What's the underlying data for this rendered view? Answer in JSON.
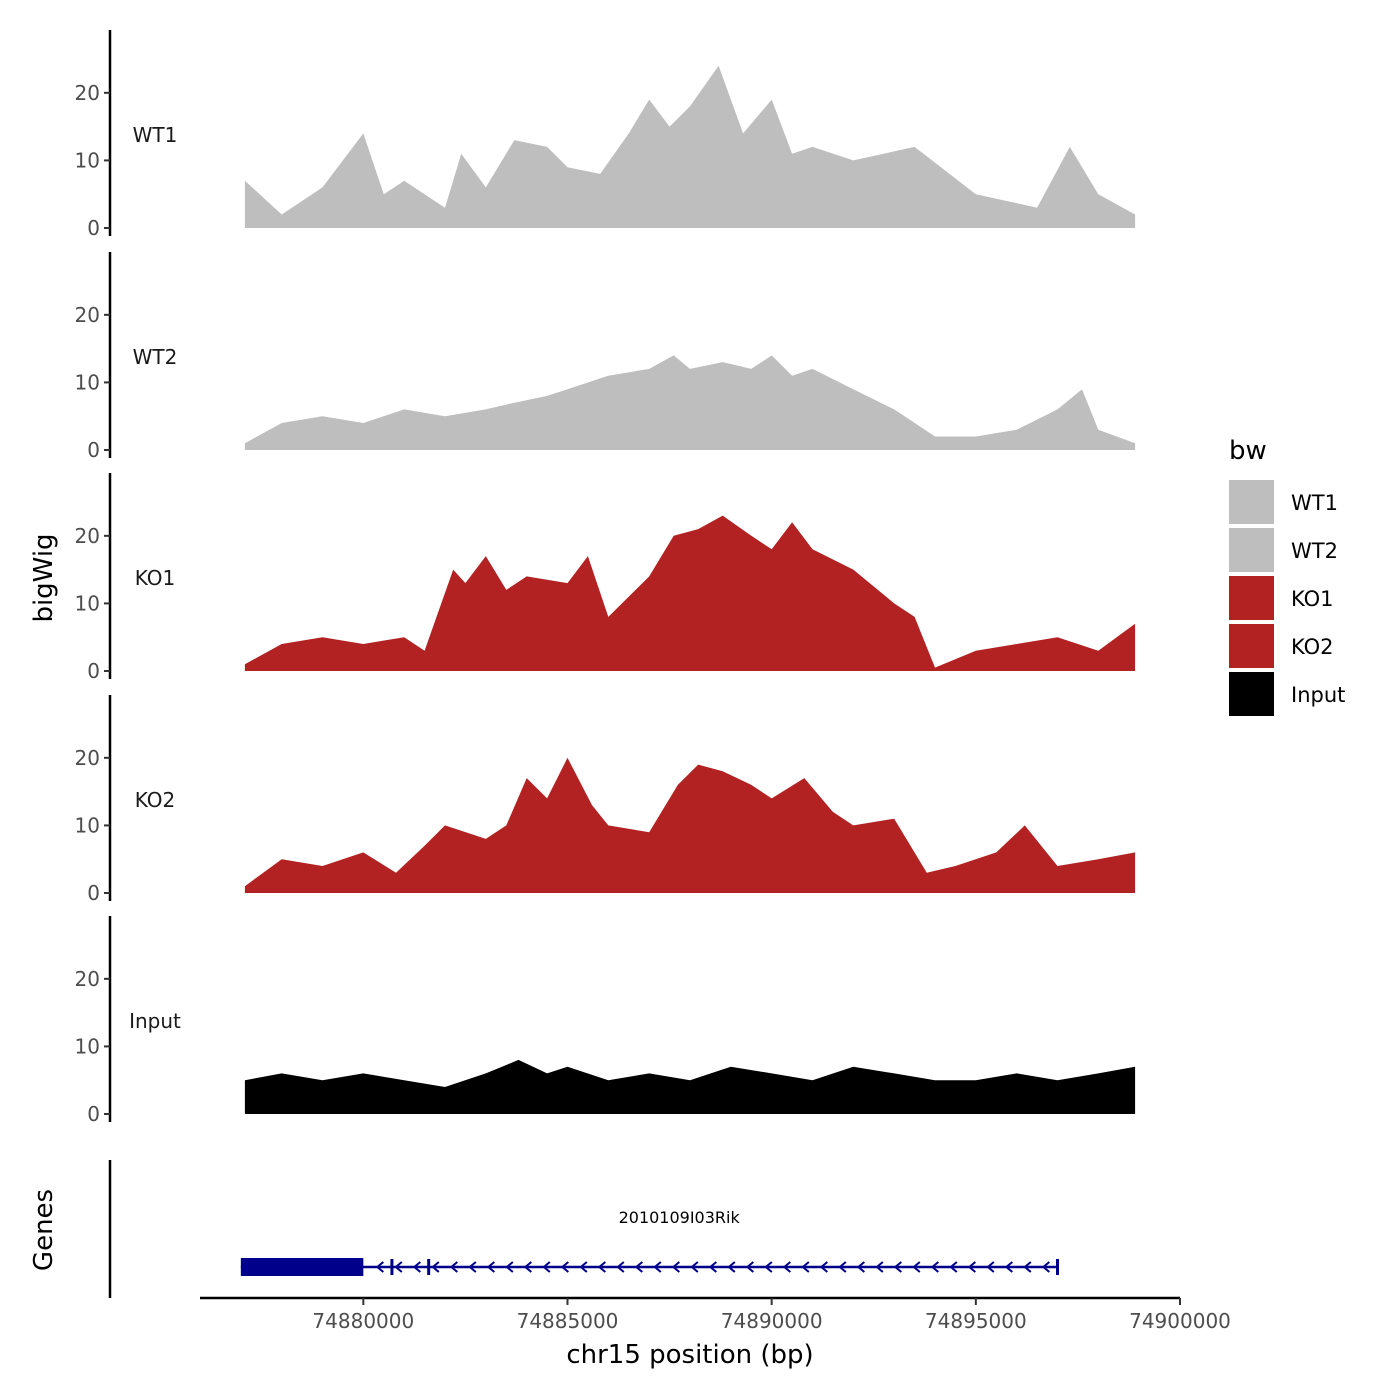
{
  "chart_data": {
    "type": "area",
    "chromosome": "chr15",
    "xlabel": "chr15 position (bp)",
    "ylabel": "bigWig",
    "genes_label": "Genes",
    "xlim": [
      74876000,
      74900000
    ],
    "x_ticks": [
      74880000,
      74885000,
      74890000,
      74895000,
      74900000
    ],
    "x_tick_labels": [
      "74880000",
      "74885000",
      "74890000",
      "74895000",
      "74900000"
    ],
    "ylim": [
      0,
      29
    ],
    "y_ticks": [
      0,
      10,
      20
    ],
    "y_tick_labels": [
      "0",
      "10",
      "20"
    ],
    "legend": {
      "title": "bw",
      "entries": [
        {
          "label": "WT1",
          "color": "#bebebe"
        },
        {
          "label": "WT2",
          "color": "#bebebe"
        },
        {
          "label": "KO1",
          "color": "#b22222"
        },
        {
          "label": "KO2",
          "color": "#b22222"
        },
        {
          "label": "Input",
          "color": "#000000"
        }
      ]
    },
    "tracks": [
      {
        "name": "WT1",
        "color": "#bebebe",
        "x": [
          74877100,
          74878000,
          74879000,
          74880000,
          74880500,
          74881000,
          74882000,
          74882400,
          74883000,
          74883700,
          74884500,
          74885000,
          74885800,
          74886500,
          74887000,
          74887500,
          74888000,
          74888700,
          74889300,
          74890000,
          74890500,
          74891000,
          74892000,
          74893500,
          74895000,
          74896500,
          74897300,
          74898000,
          74898900
        ],
        "values": [
          7,
          2,
          6,
          14,
          5,
          7,
          3,
          11,
          6,
          13,
          12,
          9,
          8,
          14,
          19,
          15,
          18,
          24,
          14,
          19,
          11,
          12,
          10,
          12,
          5,
          3,
          12,
          5,
          2
        ]
      },
      {
        "name": "WT2",
        "color": "#bebebe",
        "x": [
          74877100,
          74878000,
          74879000,
          74880000,
          74881000,
          74882000,
          74883000,
          74883700,
          74884500,
          74885000,
          74886000,
          74887000,
          74887600,
          74888000,
          74888800,
          74889500,
          74890000,
          74890500,
          74891000,
          74892000,
          74893000,
          74894000,
          74895000,
          74896000,
          74897000,
          74897600,
          74898000,
          74898900
        ],
        "values": [
          1,
          4,
          5,
          4,
          6,
          5,
          6,
          7,
          8,
          9,
          11,
          12,
          14,
          12,
          13,
          12,
          14,
          11,
          12,
          9,
          6,
          2,
          2,
          3,
          6,
          9,
          3,
          1
        ]
      },
      {
        "name": "KO1",
        "color": "#b22222",
        "x": [
          74877100,
          74878000,
          74879000,
          74880000,
          74881000,
          74881500,
          74882200,
          74882500,
          74883000,
          74883500,
          74884000,
          74885000,
          74885500,
          74886000,
          74887000,
          74887600,
          74888200,
          74888800,
          74889500,
          74890000,
          74890500,
          74891000,
          74892000,
          74893000,
          74893500,
          74894000,
          74895000,
          74896000,
          74897000,
          74898000,
          74898900
        ],
        "values": [
          1,
          4,
          5,
          4,
          5,
          3,
          15,
          13,
          17,
          12,
          14,
          13,
          17,
          8,
          14,
          20,
          21,
          23,
          20,
          18,
          22,
          18,
          15,
          10,
          8,
          0.5,
          3,
          4,
          5,
          3,
          7
        ]
      },
      {
        "name": "KO2",
        "color": "#b22222",
        "x": [
          74877100,
          74878000,
          74879000,
          74880000,
          74880800,
          74881500,
          74882000,
          74883000,
          74883500,
          74884000,
          74884500,
          74885000,
          74885600,
          74886000,
          74887000,
          74887700,
          74888200,
          74888800,
          74889500,
          74890000,
          74890800,
          74891500,
          74892000,
          74893000,
          74893800,
          74894500,
          74895500,
          74896200,
          74897000,
          74898000,
          74898900
        ],
        "values": [
          1,
          5,
          4,
          6,
          3,
          7,
          10,
          8,
          10,
          17,
          14,
          20,
          13,
          10,
          9,
          16,
          19,
          18,
          16,
          14,
          17,
          12,
          10,
          11,
          3,
          4,
          6,
          10,
          4,
          5,
          6
        ]
      },
      {
        "name": "Input",
        "color": "#000000",
        "x": [
          74877100,
          74878000,
          74879000,
          74880000,
          74881000,
          74882000,
          74883000,
          74883800,
          74884500,
          74885000,
          74886000,
          74887000,
          74888000,
          74889000,
          74890000,
          74891000,
          74892000,
          74893000,
          74894000,
          74895000,
          74896000,
          74897000,
          74898000,
          74898900
        ],
        "values": [
          5,
          6,
          5,
          6,
          5,
          4,
          6,
          8,
          6,
          7,
          5,
          6,
          5,
          7,
          6,
          5,
          7,
          6,
          5,
          5,
          6,
          5,
          6,
          7
        ]
      }
    ],
    "gene": {
      "name": "2010109I03Rik",
      "color": "#00008b",
      "start": 74877000,
      "end": 74897000,
      "strand": "-",
      "thick_blocks": [
        [
          74877000,
          74880000
        ]
      ],
      "exons": [
        74880700,
        74881600,
        74897000
      ]
    }
  }
}
